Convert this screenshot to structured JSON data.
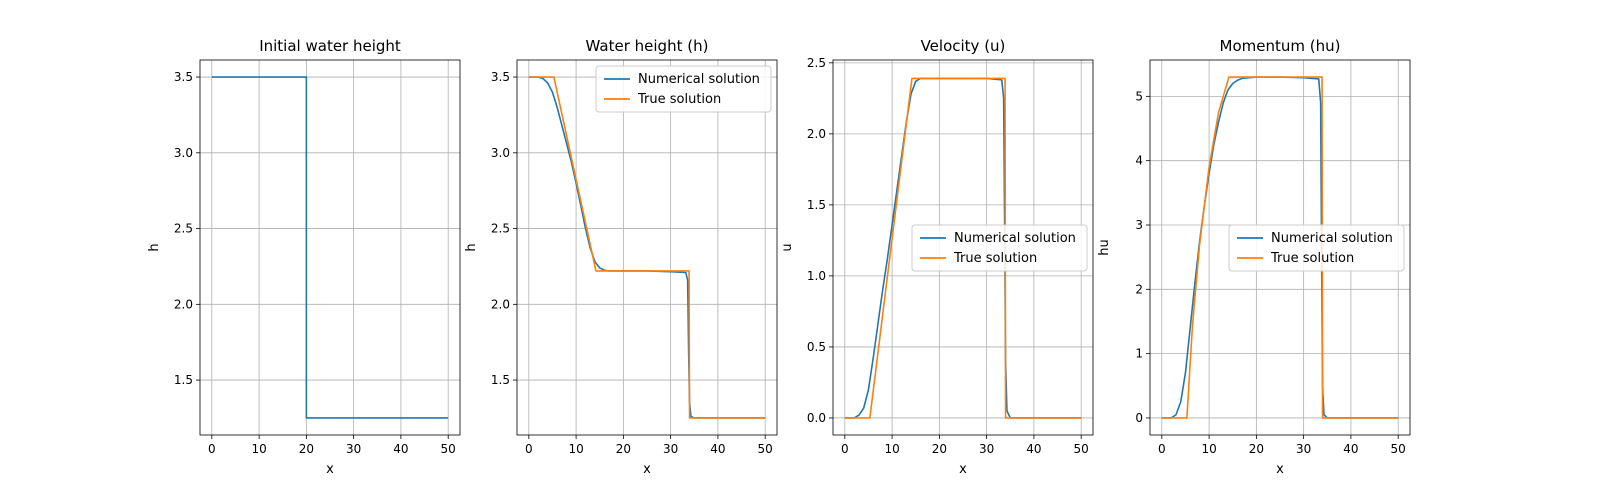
{
  "colors": {
    "numerical": "#1f77b4",
    "true": "#ff7f0e",
    "grid": "#b0b0b0"
  },
  "chart_data": [
    {
      "type": "line",
      "title": "Initial water height",
      "xlabel": "x",
      "ylabel": "h",
      "xlim": [
        -2.5,
        52.5
      ],
      "ylim": [
        1.1375,
        3.6125
      ],
      "xticks": [
        0,
        10,
        20,
        30,
        40,
        50
      ],
      "yticks": [
        1.5,
        2.0,
        2.5,
        3.0,
        3.5
      ],
      "ytick_labels": [
        "1.5",
        "2.0",
        "2.5",
        "3.0",
        "3.5"
      ],
      "grid": true,
      "legend": null,
      "series": [
        {
          "color_key": "numerical",
          "x": [
            0,
            20,
            20,
            50
          ],
          "y": [
            3.5,
            3.5,
            1.25,
            1.25
          ]
        }
      ]
    },
    {
      "type": "line",
      "title": "Water height (h)",
      "xlabel": "x",
      "ylabel": "h",
      "xlim": [
        -2.5,
        52.5
      ],
      "ylim": [
        1.1375,
        3.6125
      ],
      "xticks": [
        0,
        10,
        20,
        30,
        40,
        50
      ],
      "yticks": [
        1.5,
        2.0,
        2.5,
        3.0,
        3.5
      ],
      "ytick_labels": [
        "1.5",
        "2.0",
        "2.5",
        "3.0",
        "3.5"
      ],
      "grid": true,
      "legend": "top-right",
      "series": [
        {
          "name": "Numerical solution",
          "color_key": "numerical",
          "x": [
            0,
            2,
            3,
            4,
            5,
            6,
            7,
            8,
            9,
            10,
            11,
            12,
            13,
            14,
            15,
            16,
            17,
            20,
            25,
            30,
            33.2,
            33.6,
            33.8,
            34.0,
            34.3,
            35,
            50
          ],
          "y": [
            3.5,
            3.5,
            3.49,
            3.46,
            3.4,
            3.3,
            3.18,
            3.06,
            2.94,
            2.8,
            2.65,
            2.5,
            2.37,
            2.28,
            2.24,
            2.225,
            2.22,
            2.22,
            2.22,
            2.215,
            2.21,
            2.16,
            1.7,
            1.35,
            1.26,
            1.25,
            1.25
          ]
        },
        {
          "name": "True solution",
          "color_key": "true",
          "x": [
            0,
            5.3,
            14.2,
            33.9,
            34.0,
            50
          ],
          "y": [
            3.5,
            3.5,
            2.22,
            2.22,
            1.25,
            1.25
          ]
        }
      ]
    },
    {
      "type": "line",
      "title": "Velocity (u)",
      "xlabel": "x",
      "ylabel": "u",
      "xlim": [
        -2.5,
        52.5
      ],
      "ylim": [
        -0.12,
        2.52
      ],
      "xticks": [
        0,
        10,
        20,
        30,
        40,
        50
      ],
      "yticks": [
        0.0,
        0.5,
        1.0,
        1.5,
        2.0,
        2.5
      ],
      "ytick_labels": [
        "0.0",
        "0.5",
        "1.0",
        "1.5",
        "2.0",
        "2.5"
      ],
      "grid": true,
      "legend": "center-right",
      "series": [
        {
          "name": "Numerical solution",
          "color_key": "numerical",
          "x": [
            0,
            2,
            3,
            4,
            5,
            6,
            7,
            8,
            9,
            10,
            11,
            12,
            13,
            14,
            15,
            16,
            17,
            20,
            25,
            30,
            33.2,
            33.6,
            33.8,
            34.0,
            34.3,
            35,
            50
          ],
          "y": [
            0,
            0,
            0.02,
            0.07,
            0.2,
            0.42,
            0.66,
            0.9,
            1.12,
            1.36,
            1.6,
            1.84,
            2.08,
            2.28,
            2.37,
            2.39,
            2.39,
            2.39,
            2.39,
            2.39,
            2.38,
            2.25,
            1.4,
            0.4,
            0.05,
            0.0,
            0.0
          ]
        },
        {
          "name": "True solution",
          "color_key": "true",
          "x": [
            0,
            5.3,
            14.2,
            33.9,
            34.0,
            50
          ],
          "y": [
            0,
            0,
            2.39,
            2.39,
            0,
            0
          ]
        }
      ]
    },
    {
      "type": "line",
      "title": "Momentum (hu)",
      "xlabel": "x",
      "ylabel": "hu",
      "xlim": [
        -2.5,
        52.5
      ],
      "ylim": [
        -0.265,
        5.565
      ],
      "xticks": [
        0,
        10,
        20,
        30,
        40,
        50
      ],
      "yticks": [
        0,
        1,
        2,
        3,
        4,
        5
      ],
      "ytick_labels": [
        "0",
        "1",
        "2",
        "3",
        "4",
        "5"
      ],
      "grid": true,
      "legend": "center-right",
      "series": [
        {
          "name": "Numerical solution",
          "color_key": "numerical",
          "x": [
            0,
            2,
            3,
            4,
            5,
            6,
            7,
            8,
            9,
            10,
            11,
            12,
            13,
            14,
            15,
            16,
            17,
            20,
            25,
            30,
            33.2,
            33.6,
            33.8,
            34.0,
            34.3,
            35,
            50
          ],
          "y": [
            0,
            0,
            0.05,
            0.25,
            0.7,
            1.4,
            2.1,
            2.75,
            3.3,
            3.8,
            4.25,
            4.6,
            4.9,
            5.1,
            5.2,
            5.25,
            5.28,
            5.3,
            5.3,
            5.29,
            5.27,
            4.9,
            2.5,
            0.5,
            0.05,
            0.0,
            0.0
          ]
        },
        {
          "name": "True solution",
          "color_key": "true",
          "x": [
            0,
            5.3,
            6.5,
            8,
            10,
            12,
            14.2,
            33.9,
            34.0,
            50
          ],
          "y": [
            0,
            0,
            1.45,
            2.7,
            3.9,
            4.75,
            5.3,
            5.3,
            0,
            0
          ]
        }
      ]
    }
  ]
}
